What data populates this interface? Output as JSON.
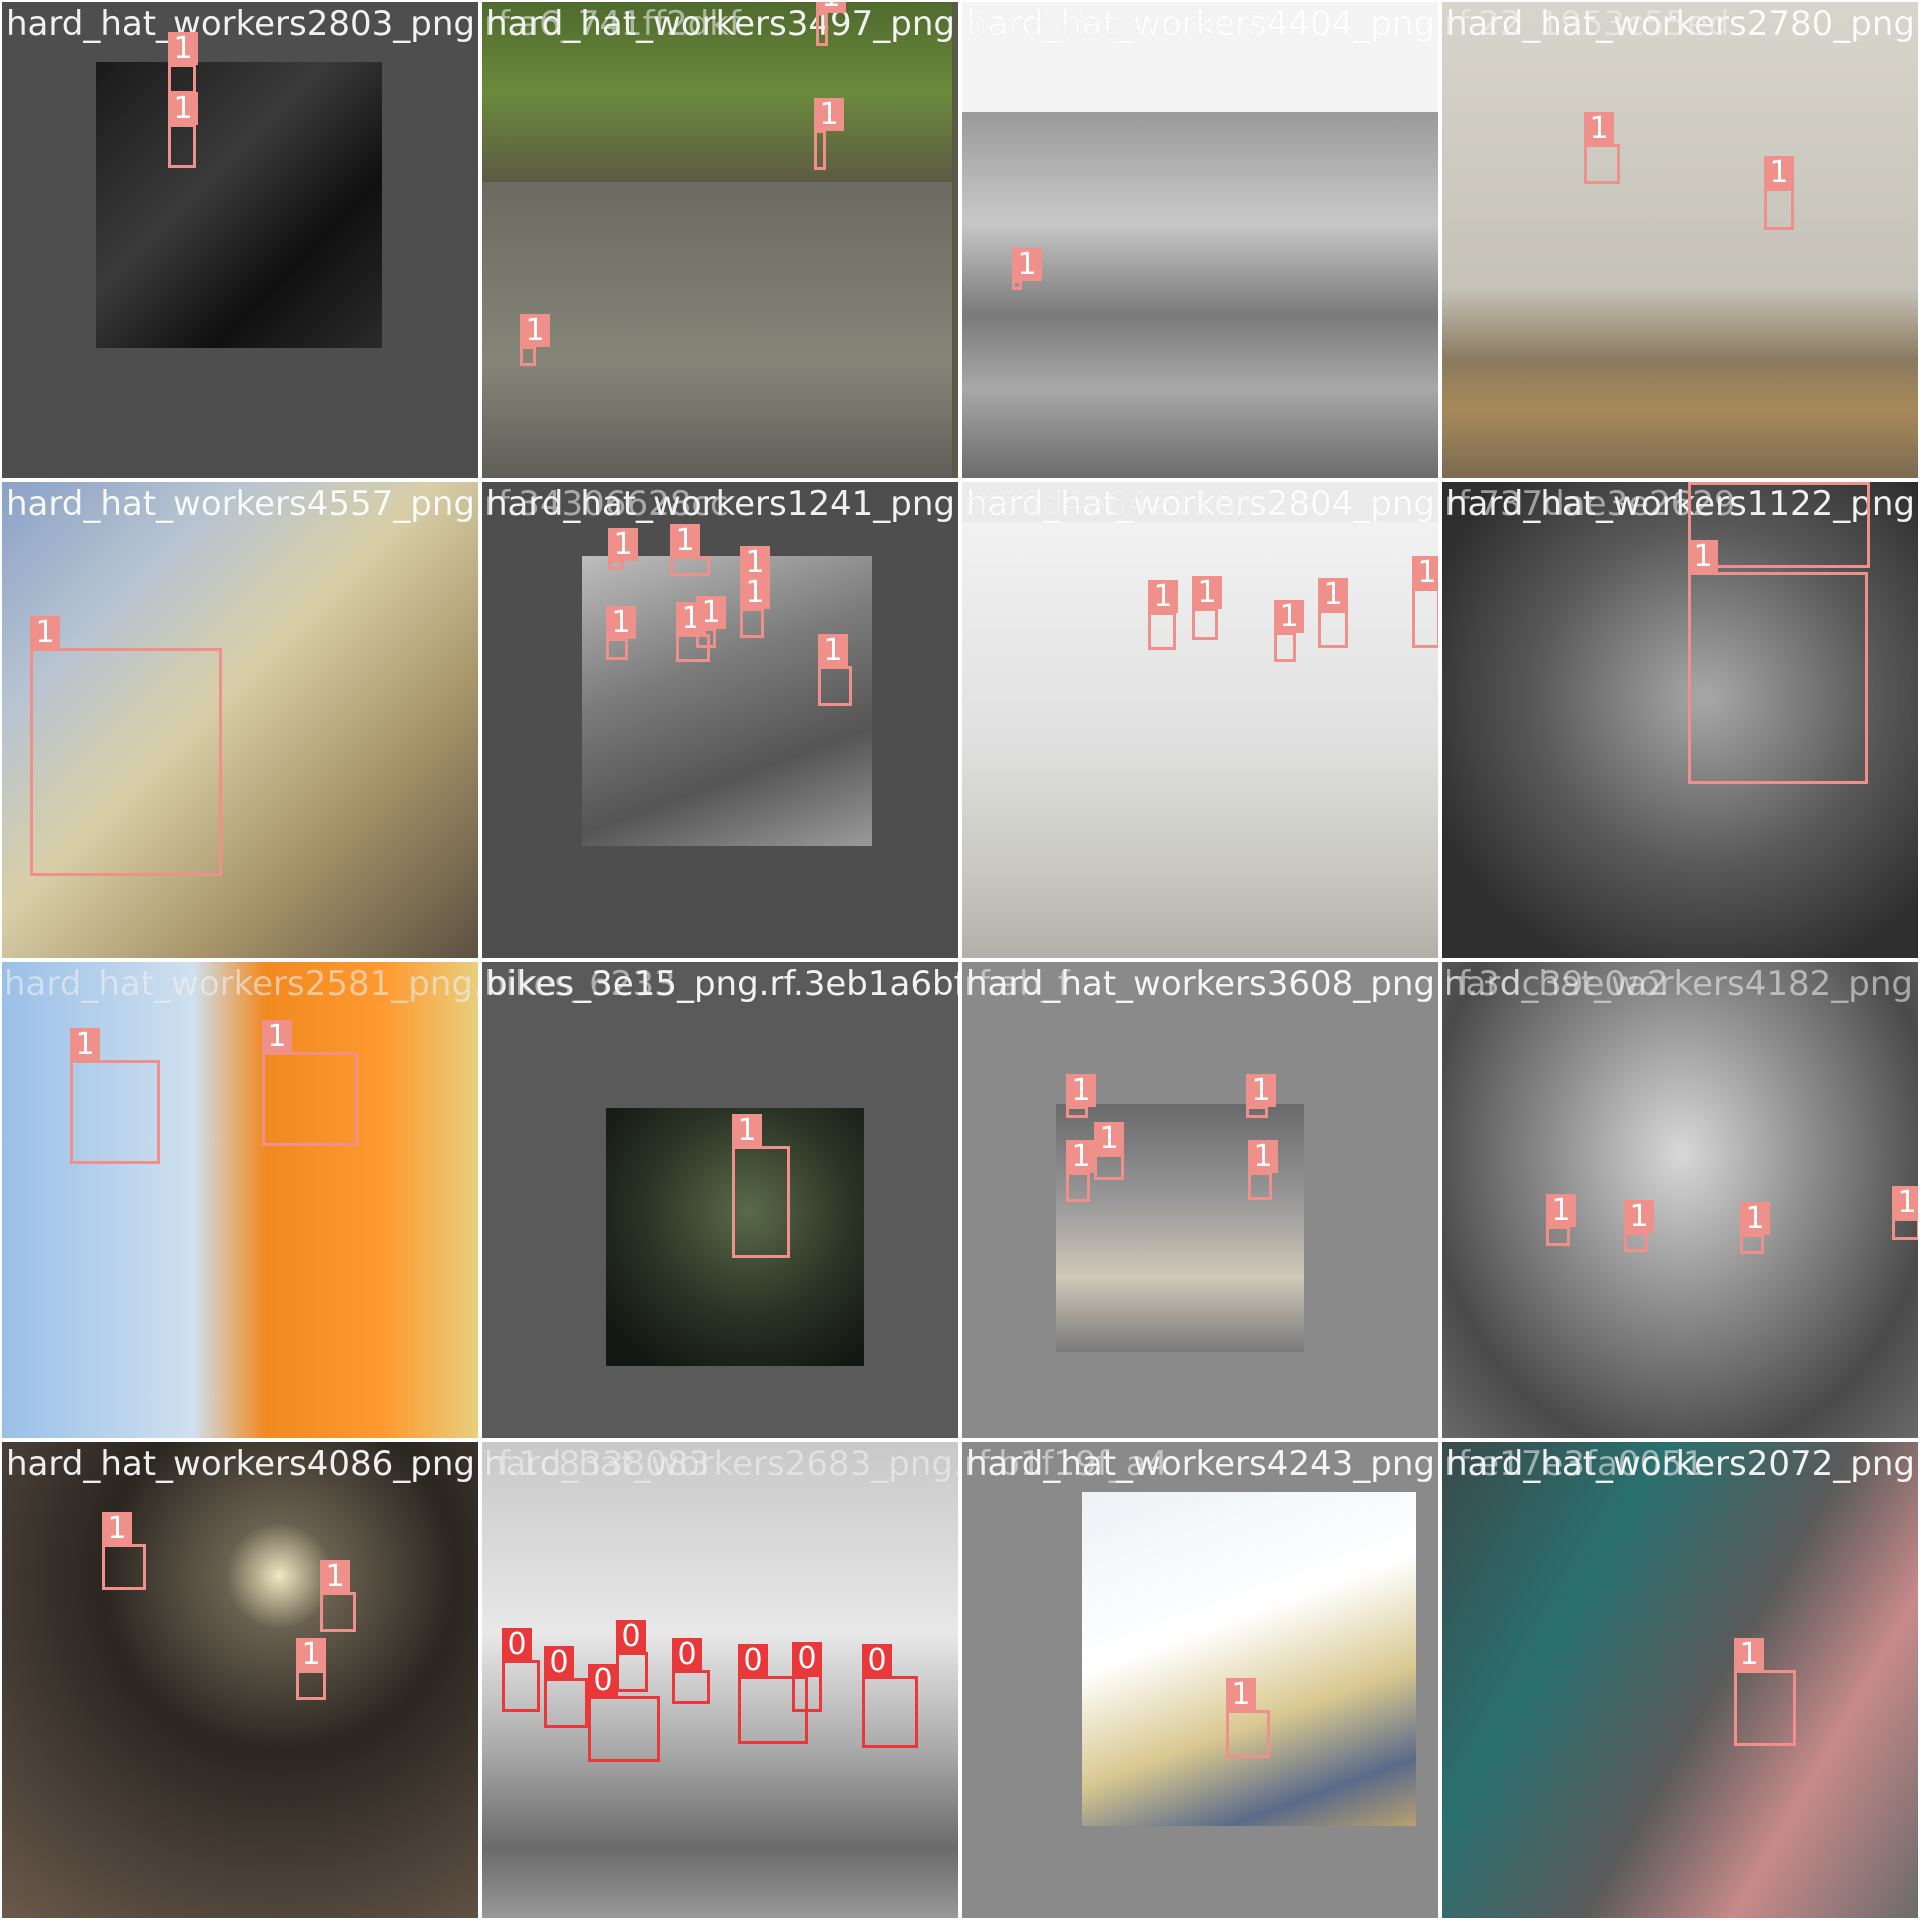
{
  "colors": {
    "class_1": "#f0908a",
    "class_0": "#e8383a",
    "label_text": "#ffffff",
    "padding_gray": "#4d4d4d"
  },
  "tiles": [
    {
      "filename": "hard_hat_workers2803_png.",
      "overlay": "",
      "labels": [
        "1",
        "1"
      ]
    },
    {
      "filename": "hard_hat_workers3497_png.",
      "overlay": "rf.a6_741ff2dkf",
      "labels": [
        "1",
        "1",
        "1"
      ]
    },
    {
      "filename": "hard_hat_workers4404_png.",
      "overlay": "rf.49ca2294ctb45",
      "labels": [
        "1"
      ]
    },
    {
      "filename": "hard_hat_workers2780_png",
      "overlay": "rf.22_1953c55ed",
      "labels": [
        "1",
        "1"
      ]
    },
    {
      "filename": "hard_hat_workers4557_png.",
      "overlay": "",
      "labels": [
        "1"
      ]
    },
    {
      "filename": "hard_hat_workers1241_png.",
      "overlay": "rf.34306628cc",
      "labels": [
        "1",
        "1",
        "1",
        "1",
        "1",
        "1",
        "1",
        "1"
      ]
    },
    {
      "filename": "hard_hat_workers2804_png.",
      "overlay": "rf.88d4e6421166",
      "labels": [
        "1",
        "1",
        "1",
        "1",
        "1"
      ]
    },
    {
      "filename": "hard_hat_workers1122_png",
      "overlay": "rf.737dae3e2629",
      "labels": [
        "1",
        "1"
      ]
    },
    {
      "filename": "hard_hat_workers2581_png.",
      "overlay": "",
      "labels": [
        "1",
        "1"
      ]
    },
    {
      "filename": "bikes_3e15_png.rf.3eb1a6bf1424e472",
      "overlay": "bikes_6233",
      "labels": [
        "1"
      ]
    },
    {
      "filename": "hard_hat_workers3608_png.",
      "overlay": "rf.ab_f",
      "labels": [
        "1",
        "1",
        "1",
        "1",
        "1"
      ]
    },
    {
      "filename": "hard_hat_workers4182_png",
      "overlay": "rf.3dc39e0a2",
      "labels": [
        "1",
        "1",
        "1",
        "1"
      ]
    },
    {
      "filename": "hard_hat_workers4086_png.",
      "overlay": "",
      "labels": [
        "1",
        "1",
        "1"
      ]
    },
    {
      "filename": "hard_hat_workers2683_png.",
      "overlay": "rf.1c8338083",
      "labels": [
        "0",
        "0",
        "0",
        "0",
        "0",
        "0",
        "0",
        "0"
      ]
    },
    {
      "filename": "hard_hat_workers4243_png.",
      "overlay": "rf.b1f19f_a4",
      "labels": [
        "1"
      ]
    },
    {
      "filename": "hard_hat_workers2072_png",
      "overlay": "rf.e17e3fa0051",
      "labels": [
        "1"
      ]
    }
  ]
}
